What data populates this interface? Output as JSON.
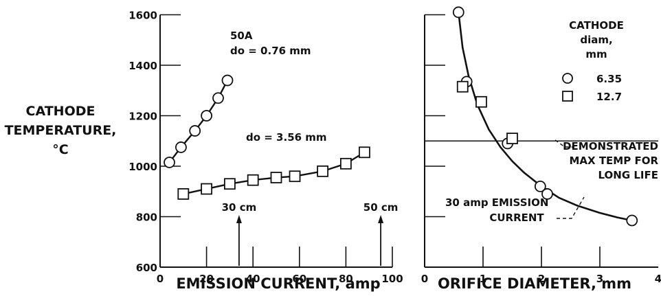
{
  "chart_data": [
    {
      "type": "line",
      "ylabel_lines": [
        "CATHODE",
        "TEMPERATURE,",
        "°C"
      ],
      "xlabel": "EMISSION CURRENT, amp",
      "xlim": [
        0,
        100
      ],
      "ylim": [
        600,
        1600
      ],
      "x_ticks": [
        "0",
        "20",
        "40",
        "60",
        "80",
        "100"
      ],
      "y_ticks": [
        "600",
        "800",
        "1000",
        "1200",
        "1400",
        "1600"
      ],
      "series": [
        {
          "name": "50A do = 0.76 mm",
          "name_lines": [
            "50A",
            "do = 0.76 mm"
          ],
          "marker": "circle",
          "x": [
            4,
            9,
            15,
            20,
            25,
            29
          ],
          "y": [
            1015,
            1075,
            1140,
            1200,
            1270,
            1340
          ]
        },
        {
          "name": "do = 3.56 mm",
          "marker": "square",
          "x": [
            10,
            20,
            30,
            40,
            50,
            58,
            70,
            80,
            88
          ],
          "y": [
            890,
            910,
            930,
            945,
            955,
            960,
            980,
            1010,
            1055
          ]
        }
      ],
      "markers": [
        {
          "label": "30 cm",
          "x": 34
        },
        {
          "label": "50 cm",
          "x": 95
        }
      ]
    },
    {
      "type": "scatter",
      "xlabel": "ORIFICE DIAMETER, mm",
      "xlim": [
        0,
        4
      ],
      "ylim": [
        600,
        1600
      ],
      "x_ticks": [
        "0",
        "1",
        "2",
        "3",
        "4"
      ],
      "legend": {
        "title_lines": [
          "CATHODE",
          "diam,",
          "mm"
        ],
        "entries": [
          {
            "marker": "circle",
            "label": "6.35"
          },
          {
            "marker": "square",
            "label": "12.7"
          }
        ]
      },
      "series": [
        {
          "name": "6.35",
          "marker": "circle",
          "x": [
            0.58,
            0.72,
            1.42,
            1.98,
            2.1,
            3.55
          ],
          "y": [
            1610,
            1335,
            1090,
            920,
            890,
            785
          ]
        },
        {
          "name": "12.7",
          "marker": "square",
          "x": [
            0.65,
            0.97,
            1.5
          ],
          "y": [
            1315,
            1255,
            1110
          ]
        }
      ],
      "curve": {
        "x": [
          0.58,
          0.65,
          0.75,
          0.9,
          1.1,
          1.3,
          1.5,
          1.7,
          2.0,
          2.3,
          2.6,
          3.0,
          3.3,
          3.55
        ],
        "y": [
          1610,
          1470,
          1360,
          1245,
          1145,
          1075,
          1020,
          975,
          920,
          875,
          845,
          815,
          797,
          785
        ]
      },
      "hline": {
        "y": 1100
      },
      "annotations": [
        {
          "lines": [
            "DEMONSTRATED",
            "MAX TEMP FOR",
            "LONG LIFE"
          ]
        },
        {
          "lines": [
            "30 amp EMISSION",
            "CURRENT"
          ]
        }
      ]
    }
  ]
}
